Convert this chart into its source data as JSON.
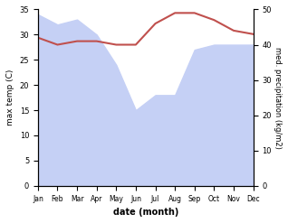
{
  "months": [
    "Jan",
    "Feb",
    "Mar",
    "Apr",
    "May",
    "Jun",
    "Jul",
    "Aug",
    "Sep",
    "Oct",
    "Nov",
    "Dec"
  ],
  "x": [
    0,
    1,
    2,
    3,
    4,
    5,
    6,
    7,
    8,
    9,
    10,
    11
  ],
  "temp_max": [
    34,
    32,
    33,
    30,
    24,
    15,
    18,
    18,
    27,
    28,
    28,
    28
  ],
  "precipitation": [
    42,
    40,
    41,
    41,
    40,
    40,
    46,
    49,
    49,
    47,
    44,
    43
  ],
  "temp_color": "#c0504d",
  "precip_fill_color": "#c5d0f5",
  "temp_ylim": [
    0,
    35
  ],
  "precip_ylim": [
    0,
    50
  ],
  "xlabel": "date (month)",
  "ylabel_left": "max temp (C)",
  "ylabel_right": "med. precipitation (kg/m2)",
  "bg_color": "#ffffff"
}
